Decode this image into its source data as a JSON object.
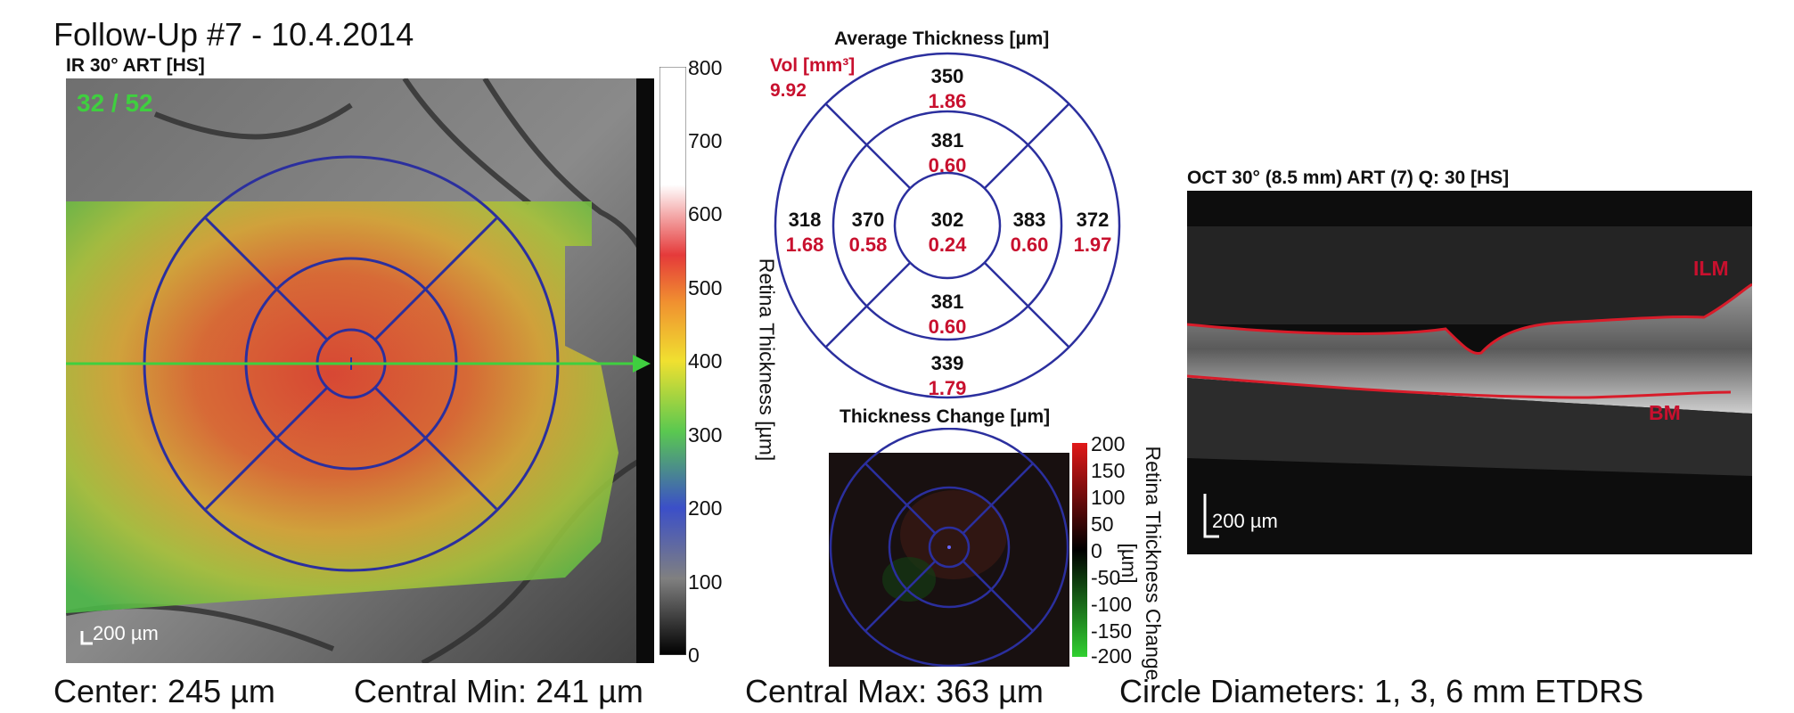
{
  "header": {
    "title": "Follow-Up #7 - 10.4.2014",
    "ir_label": "IR 30° ART [HS]",
    "frame_counter": "32 / 52"
  },
  "fundus": {
    "scale_bar": "200 µm"
  },
  "thickness_scale": {
    "axis_label": "Retina Thickness [µm]",
    "ticks": [
      "800",
      "700",
      "600",
      "500",
      "400",
      "300",
      "200",
      "100",
      "0"
    ]
  },
  "average_thickness": {
    "title": "Average Thickness [µm]",
    "vol_label": "Vol [mm³]",
    "vol_value": "9.92",
    "sectors": {
      "center": {
        "thickness": "302",
        "volume": "0.24"
      },
      "inner_superior": {
        "thickness": "381",
        "volume": "0.60"
      },
      "inner_inferior": {
        "thickness": "381",
        "volume": "0.60"
      },
      "inner_temporal": {
        "thickness": "370",
        "volume": "0.58"
      },
      "inner_nasal": {
        "thickness": "383",
        "volume": "0.60"
      },
      "outer_superior": {
        "thickness": "350",
        "volume": "1.86"
      },
      "outer_inferior": {
        "thickness": "339",
        "volume": "1.79"
      },
      "outer_temporal": {
        "thickness": "318",
        "volume": "1.68"
      },
      "outer_nasal": {
        "thickness": "372",
        "volume": "1.97"
      }
    }
  },
  "thickness_change": {
    "title": "Thickness Change [µm]",
    "axis_label": "Retina Thickness Change [µm]",
    "ticks": [
      "200",
      "150",
      "100",
      "50",
      "0",
      "-50",
      "-100",
      "-150",
      "-200"
    ]
  },
  "oct": {
    "label": "OCT 30° (8.5 mm) ART (7) Q: 30 [HS]",
    "ilm_label": "ILM",
    "bm_label": "BM",
    "scale_bar": "200 µm"
  },
  "footer": {
    "center": "Center: 245 µm",
    "central_min": "Central Min: 241 µm",
    "central_max": "Central Max: 363 µm",
    "circle_diameters": "Circle Diameters:  1, 3, 6 mm ETDRS"
  },
  "colors": {
    "etdrs_grid": "#2b2f9e",
    "volume_red": "#c8102e",
    "scan_line_green": "#3fcf3f",
    "counter_green": "#3fcf3f"
  }
}
